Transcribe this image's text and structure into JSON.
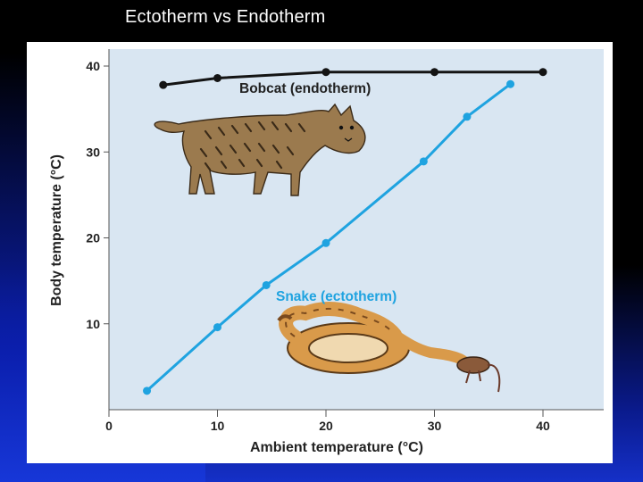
{
  "slide": {
    "title": "Ectotherm vs Endotherm"
  },
  "colors": {
    "plot_background": "#d9e6f2",
    "endotherm_line": "#141414",
    "ectotherm_line": "#1fa3e0",
    "label_text": "#222222"
  },
  "chart_data": {
    "type": "line",
    "xlabel": "Ambient temperature (°C)",
    "ylabel": "Body temperature (°C)",
    "xlim": [
      0,
      45
    ],
    "ylim": [
      0,
      42
    ],
    "x_ticks": [
      "0",
      "10",
      "20",
      "30",
      "40"
    ],
    "y_ticks": [
      "10",
      "20",
      "30",
      "40"
    ],
    "grid": false,
    "series": [
      {
        "name": "Bobcat (endotherm)",
        "x": [
          5,
          10,
          20,
          30,
          40
        ],
        "y": [
          37.8,
          38.6,
          39.3,
          39.3,
          39.3
        ]
      },
      {
        "name": "Snake (ectotherm)",
        "x": [
          3.5,
          10,
          14.5,
          20,
          29,
          33,
          37
        ],
        "y": [
          2.2,
          9.6,
          14.5,
          19.4,
          28.9,
          34.1,
          37.9
        ]
      }
    ],
    "illustrations": [
      "bobcat-illustration",
      "snake-illustration"
    ]
  }
}
